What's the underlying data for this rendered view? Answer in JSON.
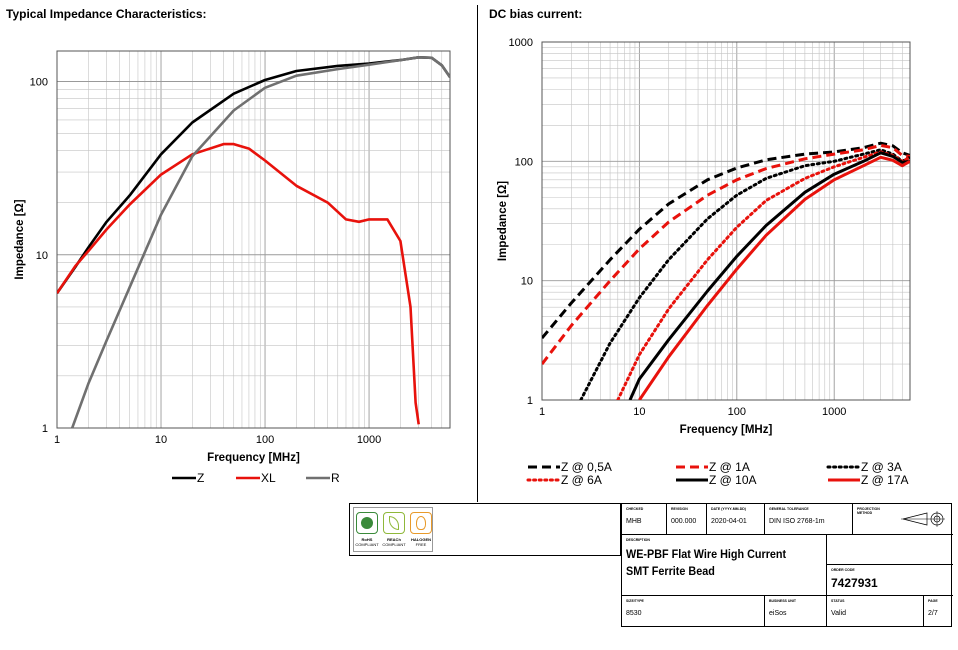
{
  "left_title": "Typical Impedance Characteristics:",
  "right_title": "DC bias current:",
  "chart_data": [
    {
      "type": "line",
      "title": "Typical Impedance Characteristics:",
      "xlabel": "Frequency  [MHz]",
      "ylabel": "Impedance [Ω]",
      "x_scale": "log",
      "y_scale": "log",
      "xlim": [
        1,
        6000
      ],
      "ylim": [
        1,
        150
      ],
      "x_ticks": [
        "1",
        "10",
        "100",
        "1000"
      ],
      "y_ticks": [
        "1",
        "10",
        "100"
      ],
      "grid": true,
      "legend_position": "bottom",
      "series": [
        {
          "name": "Z",
          "color": "#000000",
          "style": "solid",
          "points": [
            [
              1,
              6
            ],
            [
              1.5,
              8.5
            ],
            [
              2,
              11
            ],
            [
              3,
              15.5
            ],
            [
              5,
              22
            ],
            [
              10,
              38
            ],
            [
              20,
              58
            ],
            [
              50,
              85
            ],
            [
              100,
              102
            ],
            [
              200,
              115
            ],
            [
              500,
              123
            ],
            [
              1000,
              127
            ],
            [
              2000,
              133
            ],
            [
              3000,
              138
            ],
            [
              4000,
              137
            ],
            [
              5000,
              124
            ],
            [
              6000,
              106
            ]
          ]
        },
        {
          "name": "XL",
          "color": "#e8120c",
          "style": "solid",
          "points": [
            [
              1,
              6
            ],
            [
              1.5,
              8.6
            ],
            [
              2,
              10.5
            ],
            [
              3,
              14
            ],
            [
              5,
              19.5
            ],
            [
              10,
              29
            ],
            [
              20,
              38
            ],
            [
              40,
              43.5
            ],
            [
              50,
              43.5
            ],
            [
              70,
              41
            ],
            [
              100,
              35
            ],
            [
              200,
              25
            ],
            [
              400,
              20
            ],
            [
              600,
              16
            ],
            [
              800,
              15.5
            ],
            [
              1000,
              16
            ],
            [
              1500,
              16
            ],
            [
              2000,
              12
            ],
            [
              2500,
              5
            ],
            [
              2800,
              1.4
            ],
            [
              3000,
              1.05
            ]
          ]
        },
        {
          "name": "R",
          "color": "#707070",
          "style": "solid",
          "points": [
            [
              1.4,
              1
            ],
            [
              2,
              1.8
            ],
            [
              3,
              3.2
            ],
            [
              5,
              6.5
            ],
            [
              10,
              17
            ],
            [
              20,
              37
            ],
            [
              50,
              68
            ],
            [
              100,
              92
            ],
            [
              200,
              108
            ],
            [
              500,
              118
            ],
            [
              1000,
              125
            ],
            [
              2000,
              133
            ],
            [
              3000,
              138
            ],
            [
              4000,
              137
            ],
            [
              5000,
              124
            ],
            [
              6000,
              106
            ]
          ]
        }
      ]
    },
    {
      "type": "line",
      "title": "DC bias current:",
      "xlabel": "Frequency [MHz]",
      "ylabel": "Impedance [Ω]",
      "x_scale": "log",
      "y_scale": "log",
      "xlim": [
        1,
        6000
      ],
      "ylim": [
        1,
        1000
      ],
      "x_ticks": [
        "1",
        "10",
        "100",
        "1000"
      ],
      "y_ticks": [
        "1",
        "10",
        "100",
        "1000"
      ],
      "grid": true,
      "legend_position": "bottom",
      "series": [
        {
          "name": "Z @ 0,5A",
          "color": "#000000",
          "style": "dashed",
          "points": [
            [
              1,
              3.3
            ],
            [
              2,
              6.5
            ],
            [
              5,
              15
            ],
            [
              10,
              27
            ],
            [
              20,
              44
            ],
            [
              50,
              70
            ],
            [
              100,
              88
            ],
            [
              200,
              103
            ],
            [
              500,
              115
            ],
            [
              1000,
              120
            ],
            [
              2000,
              130
            ],
            [
              3000,
              142
            ],
            [
              4000,
              135
            ],
            [
              5000,
              118
            ],
            [
              6000,
              112
            ]
          ]
        },
        {
          "name": "Z @ 1A",
          "color": "#e8120c",
          "style": "dashed",
          "points": [
            [
              1,
              2
            ],
            [
              2,
              4.2
            ],
            [
              5,
              10
            ],
            [
              10,
              18.5
            ],
            [
              20,
              31
            ],
            [
              50,
              52
            ],
            [
              100,
              70
            ],
            [
              200,
              87
            ],
            [
              500,
              105
            ],
            [
              1000,
              115
            ],
            [
              2000,
              125
            ],
            [
              3000,
              136
            ],
            [
              4000,
              130
            ],
            [
              5000,
              112
            ],
            [
              6000,
              110
            ]
          ]
        },
        {
          "name": "Z @ 3A",
          "color": "#000000",
          "style": "dotted",
          "points": [
            [
              2.5,
              1
            ],
            [
              5,
              3
            ],
            [
              10,
              7.2
            ],
            [
              20,
              15
            ],
            [
              50,
              33
            ],
            [
              100,
              52
            ],
            [
              200,
              72
            ],
            [
              500,
              92
            ],
            [
              1000,
              100
            ],
            [
              2000,
              115
            ],
            [
              3000,
              125
            ],
            [
              4000,
              115
            ],
            [
              5000,
              100
            ],
            [
              6000,
              108
            ]
          ]
        },
        {
          "name": "Z @ 6A",
          "color": "#e8120c",
          "style": "dotted",
          "points": [
            [
              6,
              1
            ],
            [
              10,
              2.4
            ],
            [
              20,
              5.8
            ],
            [
              50,
              15
            ],
            [
              100,
              28
            ],
            [
              200,
              47
            ],
            [
              500,
              72
            ],
            [
              1000,
              90
            ],
            [
              2000,
              108
            ],
            [
              3000,
              120
            ],
            [
              4000,
              112
            ],
            [
              5000,
              100
            ],
            [
              6000,
              108
            ]
          ]
        },
        {
          "name": "Z @ 10A",
          "color": "#000000",
          "style": "solid",
          "points": [
            [
              8,
              1
            ],
            [
              10,
              1.5
            ],
            [
              20,
              3.2
            ],
            [
              50,
              8.2
            ],
            [
              100,
              16
            ],
            [
              200,
              29
            ],
            [
              500,
              55
            ],
            [
              1000,
              78
            ],
            [
              2000,
              100
            ],
            [
              3000,
              118
            ],
            [
              4000,
              110
            ],
            [
              5000,
              98
            ],
            [
              6000,
              100
            ]
          ]
        },
        {
          "name": "Z @ 17A",
          "color": "#e8120c",
          "style": "solid",
          "points": [
            [
              10,
              1
            ],
            [
              20,
              2.3
            ],
            [
              50,
              6.2
            ],
            [
              100,
              12.5
            ],
            [
              200,
              24
            ],
            [
              500,
              48
            ],
            [
              1000,
              70
            ],
            [
              2000,
              92
            ],
            [
              3000,
              108
            ],
            [
              4000,
              102
            ],
            [
              5000,
              92
            ],
            [
              6000,
              100
            ]
          ]
        }
      ]
    }
  ],
  "title_block": {
    "checked_label": "CHECKED",
    "checked_value": "MHB",
    "revision_label": "REVISION",
    "revision_value": "000.000",
    "date_label": "DATE (YYYY-MM-DD)",
    "date_value": "2020-04-01",
    "tolerance_label": "GENERAL TOLERANCE",
    "tolerance_value": "DIN ISO 2768-1m",
    "projection_label": "PROJECTION METHOD",
    "description_label": "DESCRIPTION",
    "description_line1": "WE-PBF Flat Wire High Current",
    "description_line2": "SMT Ferrite Bead",
    "order_code_label": "ORDER CODE",
    "order_code_value": "7427931",
    "size_label": "SIZE/TYPE",
    "size_value": "8530",
    "business_unit_label": "BUSINESS UNIT",
    "business_unit_value": "eiSos",
    "status_label": "STATUS",
    "status_value": "Valid",
    "page_label": "PAGE",
    "page_value": "2/7"
  },
  "certifications": [
    {
      "name": "RoHS",
      "sub": "COMPLIANT",
      "color": "#3a8a3a"
    },
    {
      "name": "REACh",
      "sub": "COMPLIANT",
      "color": "#8fb83a"
    },
    {
      "name": "HALOGEN",
      "sub": "FREE",
      "color": "#e89a2a"
    }
  ]
}
